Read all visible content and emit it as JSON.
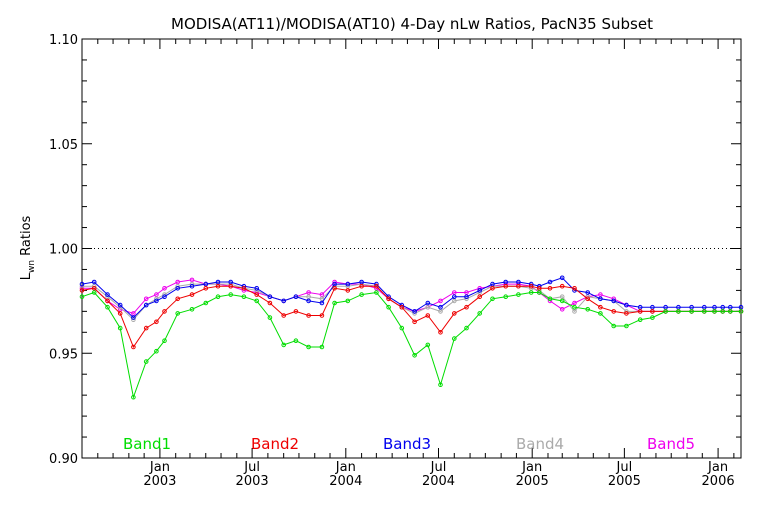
{
  "chart_data": {
    "type": "line",
    "title": "MODISA(AT11)/MODISA(AT10) 4-Day nLw Ratios, PacN35 Subset",
    "ylabel_main": "L",
    "ylabel_sub": "wn",
    "ylabel_rest": " Ratios",
    "ylim": [
      0.9,
      1.1
    ],
    "yticks": [
      "0.90",
      "0.95",
      "1.00",
      "1.05",
      "1.10"
    ],
    "xlim": [
      "2002-08-01",
      "2006-02-15"
    ],
    "xticks": [
      {
        "date": "2003-01-01",
        "line1": "Jan",
        "line2": "2003"
      },
      {
        "date": "2003-07-01",
        "line1": "Jul",
        "line2": "2003"
      },
      {
        "date": "2004-01-01",
        "line1": "Jan",
        "line2": "2004"
      },
      {
        "date": "2004-07-01",
        "line1": "Jul",
        "line2": "2004"
      },
      {
        "date": "2005-01-01",
        "line1": "Jan",
        "line2": "2005"
      },
      {
        "date": "2005-07-01",
        "line1": "Jul",
        "line2": "2005"
      },
      {
        "date": "2006-01-01",
        "line1": "Jan",
        "line2": "2006"
      }
    ],
    "reference_line": 1.0,
    "x": [
      "2002-08-01",
      "2002-08-25",
      "2002-09-20",
      "2002-10-15",
      "2002-11-10",
      "2002-12-05",
      "2002-12-25",
      "2003-01-10",
      "2003-02-05",
      "2003-03-05",
      "2003-04-01",
      "2003-04-25",
      "2003-05-20",
      "2003-06-15",
      "2003-07-10",
      "2003-08-05",
      "2003-09-01",
      "2003-09-25",
      "2003-10-20",
      "2003-11-15",
      "2003-12-10",
      "2004-01-05",
      "2004-02-01",
      "2004-03-01",
      "2004-03-25",
      "2004-04-20",
      "2004-05-15",
      "2004-06-10",
      "2004-07-05",
      "2004-08-01",
      "2004-08-25",
      "2004-09-20",
      "2004-10-15",
      "2004-11-10",
      "2004-12-05",
      "2004-12-30",
      "2005-01-15",
      "2005-02-05",
      "2005-03-01",
      "2005-03-25",
      "2005-04-20",
      "2005-05-15",
      "2005-06-10",
      "2005-07-05",
      "2005-08-01",
      "2005-08-25",
      "2005-09-20",
      "2005-10-15",
      "2005-11-10",
      "2005-12-05",
      "2005-12-25",
      "2006-01-10",
      "2006-01-25",
      "2006-02-15"
    ],
    "series": [
      {
        "name": "Band1",
        "color": "#00dd00",
        "values": [
          0.977,
          0.979,
          0.972,
          0.962,
          0.929,
          0.946,
          0.951,
          0.956,
          0.969,
          0.971,
          0.974,
          0.977,
          0.978,
          0.977,
          0.975,
          0.967,
          0.954,
          0.956,
          0.953,
          0.953,
          0.974,
          0.975,
          0.978,
          0.979,
          0.972,
          0.962,
          0.949,
          0.954,
          0.935,
          0.957,
          0.962,
          0.969,
          0.976,
          0.977,
          0.978,
          0.979,
          0.979,
          0.976,
          0.975,
          0.972,
          0.971,
          0.969,
          0.963,
          0.963,
          0.966,
          0.967,
          0.97,
          0.97,
          0.97,
          0.97,
          0.97,
          0.97,
          0.97,
          0.97
        ]
      },
      {
        "name": "Band2",
        "color": "#ee0000",
        "values": [
          0.98,
          0.981,
          0.975,
          0.969,
          0.953,
          0.962,
          0.965,
          0.97,
          0.976,
          0.978,
          0.981,
          0.982,
          0.982,
          0.981,
          0.978,
          0.974,
          0.968,
          0.97,
          0.968,
          0.968,
          0.981,
          0.98,
          0.982,
          0.982,
          0.976,
          0.972,
          0.965,
          0.968,
          0.96,
          0.969,
          0.972,
          0.977,
          0.981,
          0.982,
          0.982,
          0.982,
          0.981,
          0.981,
          0.982,
          0.981,
          0.976,
          0.972,
          0.97,
          0.969,
          0.97,
          0.97,
          0.97,
          0.97,
          0.97,
          0.97,
          0.97,
          0.97,
          0.97,
          0.97
        ]
      },
      {
        "name": "Band3",
        "color": "#0000ee",
        "values": [
          0.983,
          0.984,
          0.978,
          0.973,
          0.967,
          0.973,
          0.975,
          0.977,
          0.981,
          0.982,
          0.983,
          0.984,
          0.984,
          0.982,
          0.981,
          0.977,
          0.975,
          0.977,
          0.975,
          0.974,
          0.983,
          0.983,
          0.984,
          0.983,
          0.977,
          0.973,
          0.97,
          0.974,
          0.972,
          0.977,
          0.977,
          0.98,
          0.983,
          0.984,
          0.984,
          0.983,
          0.982,
          0.984,
          0.986,
          0.98,
          0.979,
          0.976,
          0.975,
          0.973,
          0.972,
          0.972,
          0.972,
          0.972,
          0.972,
          0.972,
          0.972,
          0.972,
          0.972,
          0.972
        ]
      },
      {
        "name": "Band4",
        "color": "#aaaaaa",
        "values": [
          0.982,
          0.982,
          0.977,
          0.972,
          0.966,
          0.973,
          0.976,
          0.978,
          0.982,
          0.983,
          0.983,
          0.983,
          0.983,
          0.981,
          0.98,
          0.977,
          0.975,
          0.977,
          0.977,
          0.976,
          0.982,
          0.982,
          0.983,
          0.982,
          0.976,
          0.972,
          0.969,
          0.972,
          0.97,
          0.975,
          0.976,
          0.979,
          0.982,
          0.982,
          0.982,
          0.981,
          0.98,
          0.976,
          0.977,
          0.97,
          0.977,
          0.976,
          0.975,
          0.97,
          0.97,
          0.97,
          0.97,
          0.97,
          0.97,
          0.97,
          0.97,
          0.97,
          0.97,
          0.97
        ]
      },
      {
        "name": "Band5",
        "color": "#ee00ee",
        "values": [
          0.981,
          0.981,
          0.975,
          0.971,
          0.969,
          0.976,
          0.978,
          0.981,
          0.984,
          0.985,
          0.983,
          0.983,
          0.982,
          0.98,
          0.979,
          0.977,
          0.975,
          0.977,
          0.979,
          0.978,
          0.984,
          0.983,
          0.983,
          0.981,
          0.976,
          0.972,
          0.97,
          0.972,
          0.975,
          0.979,
          0.979,
          0.981,
          0.982,
          0.983,
          0.983,
          0.982,
          0.979,
          0.975,
          0.971,
          0.974,
          0.977,
          0.978,
          0.976,
          0.973,
          0.97,
          0.97,
          0.97,
          0.97,
          0.97,
          0.97,
          0.97,
          0.97,
          0.97,
          0.97
        ]
      }
    ]
  }
}
